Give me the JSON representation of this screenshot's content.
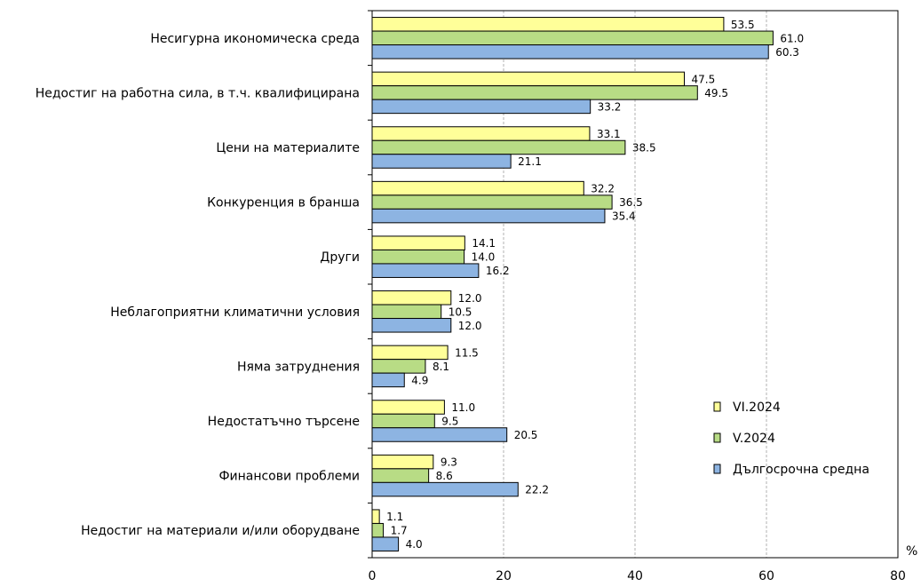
{
  "chart_data": {
    "type": "bar",
    "orientation": "horizontal",
    "categories": [
      "Несигурна икономическа среда",
      "Недостиг на работна сила, в т.ч. квалифицирана",
      "Цени на материалите",
      "Конкуренция в бранша",
      "Други",
      "Неблагоприятни климатични условия",
      "Няма затруднения",
      "Недостатъчно търсене",
      "Финансови проблеми",
      "Недостиг на материали и/или оборудване"
    ],
    "series": [
      {
        "name": "VI.2024",
        "color": "#ffff99",
        "values": [
          53.5,
          47.5,
          33.1,
          32.2,
          14.1,
          12.0,
          11.5,
          11.0,
          9.3,
          1.1
        ],
        "labels": [
          "53.5",
          "47.5",
          "33.1",
          "32.2",
          "14.1",
          "12.0",
          "11.5",
          "11.0",
          "9.3",
          "1.1"
        ]
      },
      {
        "name": "V.2024",
        "color": "#b8dc85",
        "values": [
          61.0,
          49.5,
          38.5,
          36.5,
          14.0,
          10.5,
          8.1,
          9.5,
          8.6,
          1.7
        ],
        "labels": [
          "61.0",
          "49.5",
          "38.5",
          "36.5",
          "14.0",
          "10.5",
          "8.1",
          "9.5",
          "8.6",
          "1.7"
        ]
      },
      {
        "name": "Дългосрочна средна",
        "color": "#8db4e2",
        "values": [
          60.3,
          33.2,
          21.1,
          35.4,
          16.2,
          12.0,
          4.9,
          20.5,
          22.2,
          4.0
        ],
        "labels": [
          "60.3",
          "33.2",
          "21.1",
          "35.4",
          "16.2",
          "12.0",
          "4.9",
          "20.5",
          "22.2",
          "4.0"
        ]
      }
    ],
    "xlim": [
      0,
      80
    ],
    "xticks": [
      "0",
      "20",
      "40",
      "60",
      "80"
    ],
    "unit_label": "%",
    "grid": "vertical dashed",
    "legend_position": "right"
  }
}
